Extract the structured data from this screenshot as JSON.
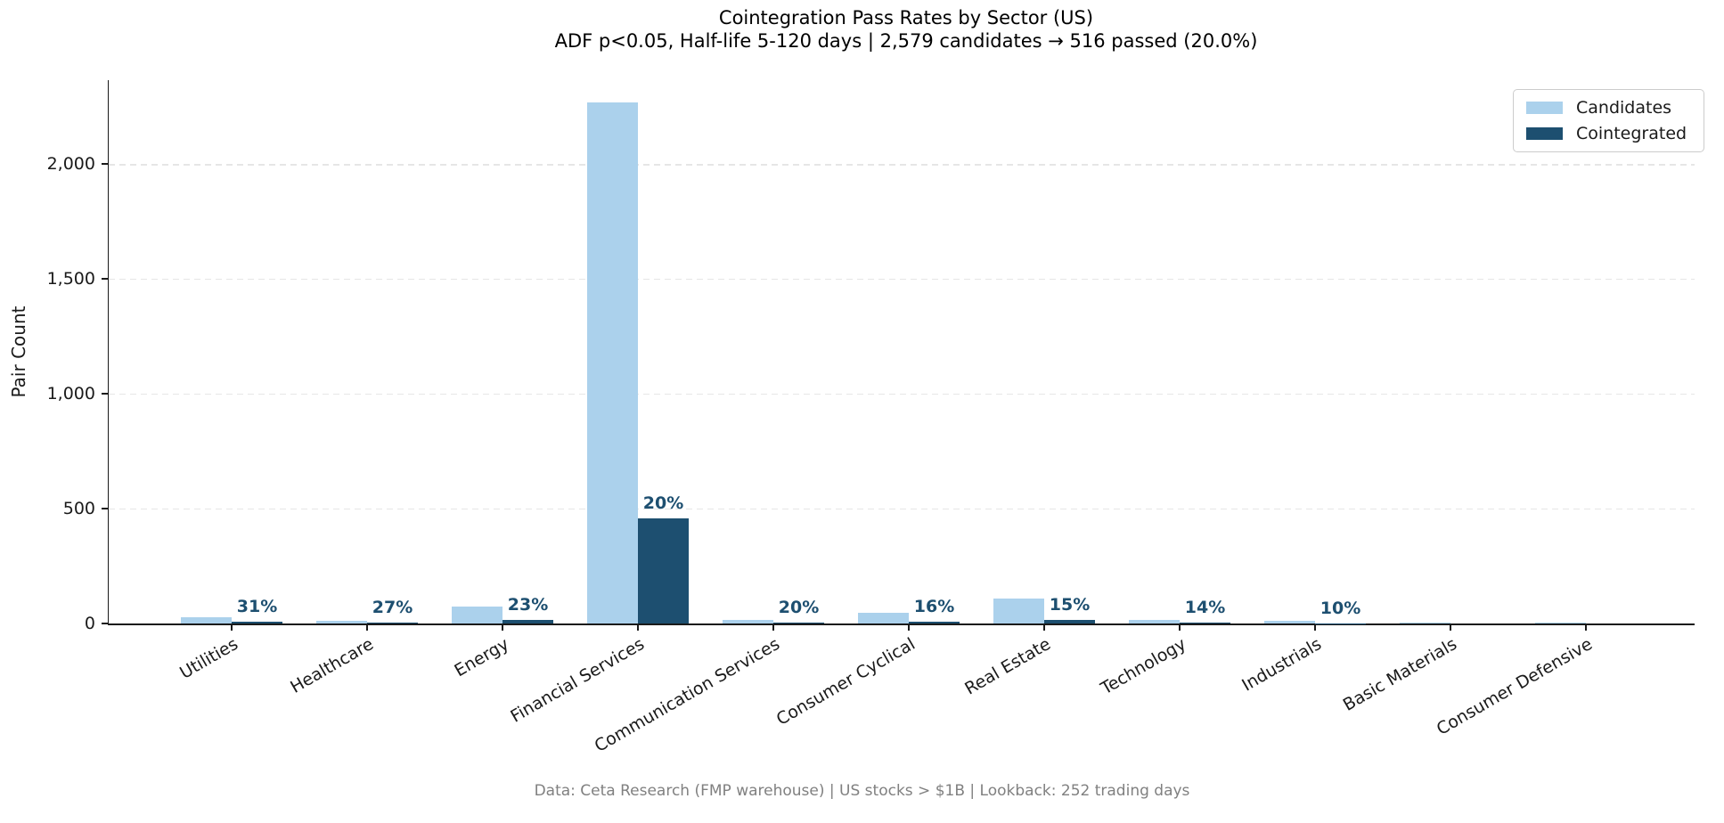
{
  "chart_data": {
    "type": "bar",
    "title": "Cointegration Pass Rates by Sector (US)",
    "subtitle": "ADF p<0.05, Half-life 5-120 days | 2,579 candidates → 516 passed (20.0%)",
    "categories": [
      "Utilities",
      "Healthcare",
      "Energy",
      "Financial Services",
      "Communication Services",
      "Consumer Cyclical",
      "Real Estate",
      "Technology",
      "Industrials",
      "Basic Materials",
      "Consumer Defensive"
    ],
    "series": [
      {
        "name": "Candidates",
        "color": "#abd1ec",
        "values": [
          29,
          11,
          75,
          2268,
          15,
          45,
          108,
          14,
          10,
          2,
          2
        ]
      },
      {
        "name": "Cointegrated",
        "color": "#1d4f70",
        "values": [
          9,
          3,
          17,
          458,
          3,
          7,
          16,
          2,
          1,
          0,
          0
        ]
      }
    ],
    "bar_labels": [
      "31%",
      "27%",
      "23%",
      "20%",
      "20%",
      "16%",
      "15%",
      "14%",
      "10%",
      "",
      ""
    ],
    "bar_labels_apply_to": "Cointegrated",
    "xlabel": "",
    "ylabel": "Pair Count",
    "ylim": [
      0,
      2365
    ],
    "yticks": {
      "values": [
        0,
        500,
        1000,
        1500,
        2000
      ],
      "labels": [
        "0",
        "500",
        "1,000",
        "1,500",
        "2,000"
      ]
    },
    "grid": "horizontal-dashed",
    "legend_position": "upper-right"
  },
  "footer": {
    "text": "Data: Ceta Research (FMP warehouse) | US stocks > $1B | Lookback: 252 trading days"
  },
  "colors": {
    "candidates": "#abd1ec",
    "cointegrated": "#1d4f70",
    "pass_rate_label": "#1d4f70",
    "gridline": "#e6e6e6",
    "axis": "#1a1a1a",
    "footer_text": "#808080",
    "background": "#ffffff"
  }
}
